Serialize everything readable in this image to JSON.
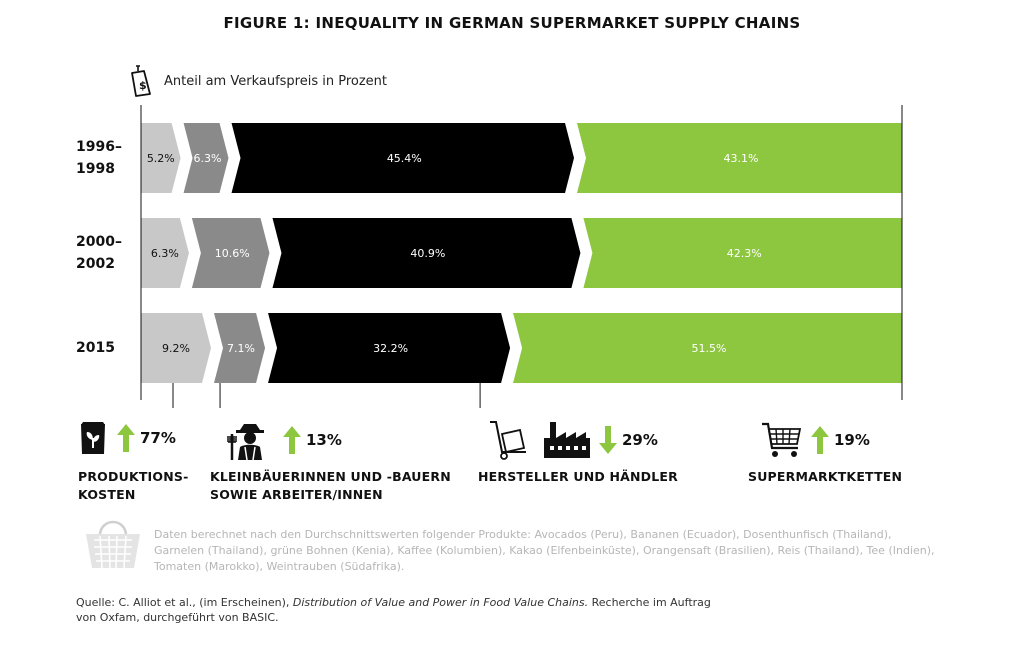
{
  "title": "FIGURE 1: INEQUALITY IN GERMAN SUPERMARKET SUPPLY CHAINS",
  "unit_label": "Anteil am Verkaufspreis in Prozent",
  "unit_icon": "price-tag-icon",
  "colors": {
    "produktion": "#c8c8c8",
    "kleinbauern": "#8a8a8a",
    "hersteller": "#000000",
    "supermarkt": "#8dc63f",
    "up": "#8dc63f",
    "down": "#8dc63f",
    "footnote": "#b6b6b6"
  },
  "chart_data": {
    "type": "bar",
    "orientation": "horizontal",
    "stacked": true,
    "categories": [
      "1996–1998",
      "2000–2002",
      "2015"
    ],
    "category_labels": [
      [
        "1996–",
        "1998"
      ],
      [
        "2000–",
        "2002"
      ],
      [
        "2015"
      ]
    ],
    "series": [
      {
        "values": [
          5.2,
          6.3,
          9.2
        ],
        "labels": [
          "5.2%",
          "6.3%",
          "9.2%"
        ]
      },
      {
        "values": [
          6.3,
          10.6,
          7.1
        ],
        "labels": [
          "6.3%",
          "10.6%",
          "7.1%"
        ]
      },
      {
        "values": [
          45.4,
          40.9,
          32.2
        ],
        "labels": [
          "45.4%",
          "40.9%",
          "32.2%"
        ]
      },
      {
        "values": [
          43.1,
          42.3,
          51.5
        ],
        "labels": [
          "43.1%",
          "42.3%",
          "51.5%"
        ]
      }
    ],
    "xlim": [
      0,
      100
    ]
  },
  "groups": [
    {
      "icon": "seed-bag-icon",
      "arrow": "up",
      "change": "77%",
      "label": [
        "PRODUKTIONS-",
        "KOSTEN"
      ]
    },
    {
      "icon": "farmer-icon",
      "arrow": "up",
      "change": "13%",
      "label": [
        "KLEINBÄUERINNEN UND -BAUERN",
        "SOWIE ARBEITER/INNEN"
      ]
    },
    {
      "icon": "hand-truck-icon",
      "icon2": "factory-icon",
      "arrow": "down",
      "change": "29%",
      "label": [
        "HERSTELLER UND HÄNDLER"
      ]
    },
    {
      "icon": "shopping-cart-icon",
      "arrow": "up",
      "change": "19%",
      "label": [
        "SUPERMARKTKETTEN"
      ]
    }
  ],
  "footnote_icon": "basket-icon",
  "footnote": "Daten berechnet nach den Durchschnittswerten folgender Produkte: Avocados (Peru), Bananen (Ecuador), Dosenthunfisch (Thailand), Garnelen (Thailand), grüne Bohnen (Kenia), Kaffee (Kolumbien), Kakao (Elfenbeinküste), Orangensaft (Brasilien), Reis (Thailand), Tee (Indien), Tomaten (Marokko), Weintrauben (Südafrika).",
  "source": {
    "prefix": "Quelle: C. Alliot et al., (im Erscheinen), ",
    "italic": "Distribution of Value and Power in Food Value Chains.",
    "suffix": " Recherche im Auftrag von Oxfam, durchgeführt von BASIC."
  }
}
